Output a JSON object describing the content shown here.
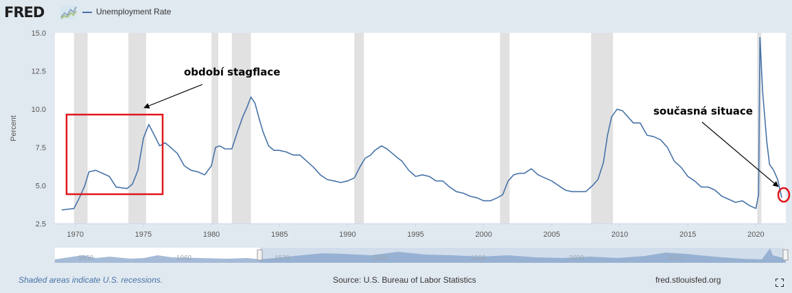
{
  "brand": {
    "logo_text": "FRED"
  },
  "legend": {
    "series_label": "Unemployment Rate"
  },
  "footer": {
    "recessions_note": "Shaded areas indicate U.S. recessions.",
    "source": "Source: U.S. Bureau of Labor Statistics",
    "site": "fred.stlouisfed.org"
  },
  "annotations": {
    "stagflation": "období stagflace",
    "current": "současná situace"
  },
  "colors": {
    "line": "#4572a7",
    "recession": "#e1e1e1",
    "highlight": "#e0151a",
    "background": "#e1e9f0"
  },
  "icons": {
    "logo_graph": "line-graph-icon",
    "fullscreen": "fullscreen-icon"
  },
  "navigator": {
    "tick_labels": [
      "1950",
      "1960",
      "1970",
      "1980",
      "1990",
      "2000",
      "2010"
    ]
  },
  "chart_data": {
    "type": "line",
    "title": "Unemployment Rate",
    "xlabel": "",
    "ylabel": "Percent",
    "xlim": [
      1968.5,
      2022.2
    ],
    "ylim": [
      2.5,
      15
    ],
    "x_ticks": [
      "1970",
      "1975",
      "1980",
      "1985",
      "1990",
      "1995",
      "2000",
      "2005",
      "2010",
      "2015",
      "2020"
    ],
    "y_ticks": [
      "2.5",
      "5.0",
      "7.5",
      "10.0",
      "12.5",
      "15.0"
    ],
    "grid": false,
    "recessions": [
      [
        1969.9,
        1970.9
      ],
      [
        1973.9,
        1975.2
      ],
      [
        1980.0,
        1980.5
      ],
      [
        1981.5,
        1982.9
      ],
      [
        1990.5,
        1991.2
      ],
      [
        2001.2,
        2001.9
      ],
      [
        2007.9,
        2009.5
      ],
      [
        2020.1,
        2020.4
      ]
    ],
    "series": [
      {
        "name": "Unemployment Rate",
        "x": [
          1969.0,
          1969.9,
          1970.3,
          1970.7,
          1971.0,
          1971.5,
          1972.0,
          1972.5,
          1973.0,
          1973.8,
          1974.2,
          1974.6,
          1975.0,
          1975.4,
          1975.8,
          1976.2,
          1976.6,
          1977.0,
          1977.5,
          1978.0,
          1978.5,
          1979.0,
          1979.5,
          1980.0,
          1980.3,
          1980.6,
          1981.0,
          1981.5,
          1981.9,
          1982.3,
          1982.6,
          1982.9,
          1983.2,
          1983.5,
          1983.8,
          1984.2,
          1984.6,
          1985.0,
          1985.5,
          1986.0,
          1986.5,
          1987.0,
          1987.5,
          1988.0,
          1988.5,
          1989.0,
          1989.5,
          1990.0,
          1990.5,
          1990.9,
          1991.3,
          1991.7,
          1992.0,
          1992.5,
          1992.9,
          1993.3,
          1993.7,
          1994.0,
          1994.5,
          1995.0,
          1995.5,
          1996.0,
          1996.5,
          1997.0,
          1997.5,
          1998.0,
          1998.5,
          1999.0,
          1999.5,
          2000.0,
          2000.5,
          2001.0,
          2001.4,
          2001.8,
          2002.2,
          2002.6,
          2003.0,
          2003.5,
          2004.0,
          2004.5,
          2005.0,
          2005.5,
          2006.0,
          2006.5,
          2007.0,
          2007.5,
          2008.0,
          2008.4,
          2008.8,
          2009.1,
          2009.4,
          2009.8,
          2010.2,
          2010.6,
          2011.0,
          2011.5,
          2012.0,
          2012.5,
          2013.0,
          2013.5,
          2014.0,
          2014.5,
          2015.0,
          2015.5,
          2016.0,
          2016.5,
          2017.0,
          2017.5,
          2018.0,
          2018.5,
          2019.0,
          2019.5,
          2020.0,
          2020.2,
          2020.3,
          2020.5,
          2020.8,
          2021.0,
          2021.3,
          2021.6,
          2021.9
        ],
        "values": [
          3.4,
          3.5,
          4.2,
          5.0,
          5.9,
          6.0,
          5.8,
          5.6,
          4.9,
          4.8,
          5.1,
          6.0,
          8.1,
          9.0,
          8.3,
          7.6,
          7.8,
          7.5,
          7.1,
          6.3,
          6.0,
          5.9,
          5.7,
          6.3,
          7.5,
          7.6,
          7.4,
          7.4,
          8.5,
          9.5,
          10.1,
          10.8,
          10.4,
          9.4,
          8.5,
          7.6,
          7.3,
          7.3,
          7.2,
          7.0,
          7.0,
          6.6,
          6.2,
          5.7,
          5.4,
          5.3,
          5.2,
          5.3,
          5.5,
          6.2,
          6.8,
          7.0,
          7.3,
          7.6,
          7.4,
          7.1,
          6.8,
          6.6,
          6.0,
          5.6,
          5.7,
          5.6,
          5.3,
          5.3,
          4.9,
          4.6,
          4.5,
          4.3,
          4.2,
          4.0,
          4.0,
          4.2,
          4.4,
          5.3,
          5.7,
          5.8,
          5.8,
          6.1,
          5.7,
          5.5,
          5.3,
          5.0,
          4.7,
          4.6,
          4.6,
          4.6,
          5.0,
          5.4,
          6.5,
          8.3,
          9.5,
          10.0,
          9.9,
          9.5,
          9.1,
          9.1,
          8.3,
          8.2,
          8.0,
          7.5,
          6.6,
          6.2,
          5.6,
          5.3,
          4.9,
          4.9,
          4.7,
          4.3,
          4.1,
          3.9,
          4.0,
          3.7,
          3.5,
          4.4,
          14.7,
          11.1,
          7.9,
          6.4,
          6.0,
          5.4,
          4.2
        ]
      }
    ]
  }
}
